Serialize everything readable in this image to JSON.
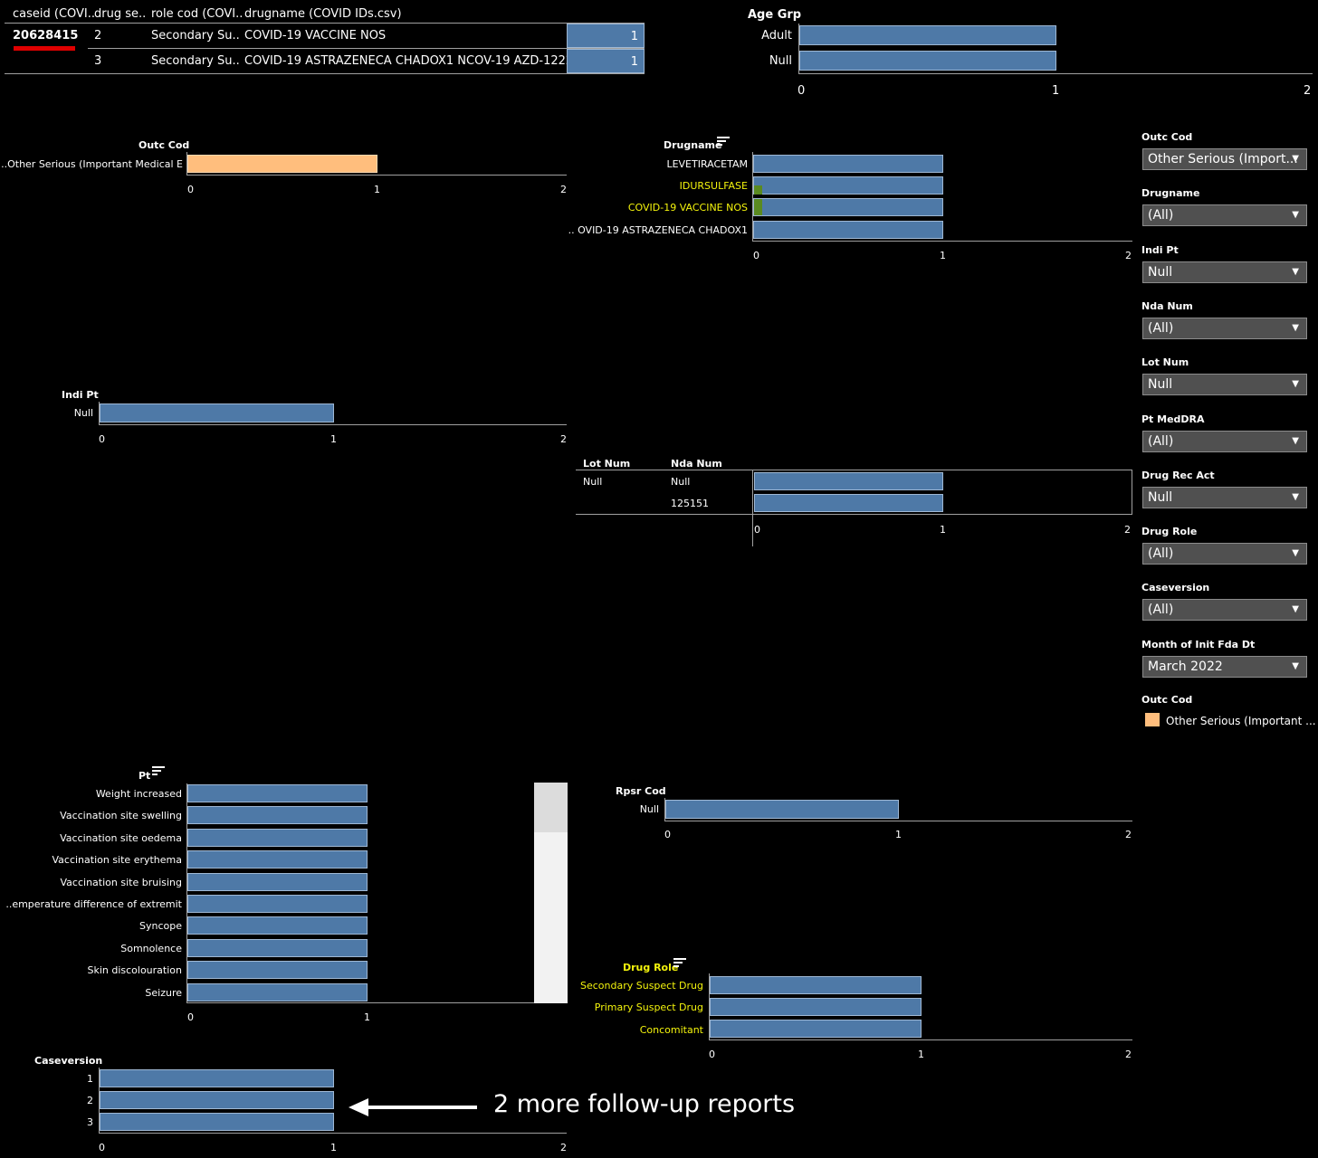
{
  "table": {
    "headers": [
      "caseid (COVI..",
      "drug se..",
      "role cod (COVI..",
      "drugname (COVID IDs.csv)"
    ],
    "caseid": "20628415",
    "rows": [
      {
        "seq": "2",
        "role": "Secondary Su..",
        "drugname": "COVID-19 VACCINE NOS",
        "value": "1"
      },
      {
        "seq": "3",
        "role": "Secondary Su..",
        "drugname": "COVID-19 ASTRAZENECA CHADOX1 NCOV-19 AZD-1222",
        "value": "1"
      }
    ]
  },
  "age_grp": {
    "title": "Age Grp",
    "labels": [
      "Adult",
      "Null"
    ],
    "ticks": [
      "0",
      "1",
      "2"
    ]
  },
  "outc_cod": {
    "title": "Outc Cod",
    "labels": [
      "Other Serious (Important Medical E.."
    ],
    "ticks": [
      "0",
      "1",
      "2"
    ]
  },
  "drugname": {
    "title": "Drugname",
    "labels": [
      "LEVETIRACETAM",
      "IDURSULFASE",
      "COVID-19 VACCINE NOS",
      "OVID-19 ASTRAZENECA CHADOX1 .."
    ],
    "ticks": [
      "0",
      "1",
      "2"
    ]
  },
  "indi_pt": {
    "title": "Indi Pt",
    "labels": [
      "Null"
    ],
    "ticks": [
      "0",
      "1",
      "2"
    ]
  },
  "lot_nda": {
    "col1": "Lot Num",
    "col2": "Nda Num",
    "lot": "Null",
    "nda": [
      "Null",
      "125151"
    ],
    "ticks": [
      "0",
      "1",
      "2"
    ]
  },
  "pt": {
    "title": "Pt",
    "labels": [
      "Weight increased",
      "Vaccination site swelling",
      "Vaccination site oedema",
      "Vaccination site erythema",
      "Vaccination site bruising",
      "emperature difference of extremit..",
      "Syncope",
      "Somnolence",
      "Skin discolouration",
      "Seizure"
    ],
    "ticks": [
      "0",
      "1"
    ]
  },
  "rpsr_cod": {
    "title": "Rpsr Cod",
    "labels": [
      "Null"
    ],
    "ticks": [
      "0",
      "1",
      "2"
    ]
  },
  "drug_role": {
    "title": "Drug Role",
    "labels": [
      "Secondary Suspect Drug",
      "Primary Suspect Drug",
      "Concomitant"
    ],
    "ticks": [
      "0",
      "1",
      "2"
    ]
  },
  "caseversion": {
    "title": "Caseversion",
    "labels": [
      "1",
      "2",
      "3"
    ],
    "ticks": [
      "0",
      "1",
      "2"
    ]
  },
  "annotation": {
    "text": "2 more follow-up reports"
  },
  "filters": [
    {
      "label": "Outc Cod",
      "value": "Other Serious (Import..."
    },
    {
      "label": "Drugname",
      "value": "(All)"
    },
    {
      "label": "Indi Pt",
      "value": "Null"
    },
    {
      "label": "Nda Num",
      "value": "(All)"
    },
    {
      "label": "Lot Num",
      "value": "Null"
    },
    {
      "label": "Pt MedDRA",
      "value": "(All)"
    },
    {
      "label": "Drug Rec Act",
      "value": "Null"
    },
    {
      "label": "Drug Role",
      "value": "(All)"
    },
    {
      "label": "Caseversion",
      "value": "(All)"
    },
    {
      "label": "Month of Init Fda Dt",
      "value": "March 2022"
    }
  ],
  "legend": {
    "title": "Outc Cod",
    "item": "Other Serious (Important ...",
    "color": "#ffbe7d"
  },
  "colors": {
    "bar": "#4e79a7",
    "highlight": "#f4f40c",
    "annotation_underline": "#e00000"
  },
  "chart_data": [
    {
      "type": "bar",
      "title": "Age Grp",
      "categories": [
        "Adult",
        "Null"
      ],
      "values": [
        1,
        1
      ],
      "xlim": [
        0,
        2
      ]
    },
    {
      "type": "bar",
      "title": "Outc Cod",
      "categories": [
        "Other Serious (Important Medical E.."
      ],
      "values": [
        1
      ],
      "xlim": [
        0,
        2
      ]
    },
    {
      "type": "bar",
      "title": "Drugname",
      "categories": [
        "LEVETIRACETAM",
        "IDURSULFASE",
        "COVID-19 VACCINE NOS",
        "OVID-19 ASTRAZENECA CHADOX1 .."
      ],
      "values": [
        1,
        1,
        1,
        1
      ],
      "xlim": [
        0,
        2
      ]
    },
    {
      "type": "bar",
      "title": "Indi Pt",
      "categories": [
        "Null"
      ],
      "values": [
        1
      ],
      "xlim": [
        0,
        2
      ]
    },
    {
      "type": "bar",
      "title": "Nda Num",
      "categories": [
        "Null",
        "125151"
      ],
      "values": [
        1,
        1
      ],
      "xlim": [
        0,
        2
      ]
    },
    {
      "type": "bar",
      "title": "Pt",
      "categories": [
        "Weight increased",
        "Vaccination site swelling",
        "Vaccination site oedema",
        "Vaccination site erythema",
        "Vaccination site bruising",
        "emperature difference of extremit..",
        "Syncope",
        "Somnolence",
        "Skin discolouration",
        "Seizure"
      ],
      "values": [
        1,
        1,
        1,
        1,
        1,
        1,
        1,
        1,
        1,
        1
      ]
    },
    {
      "type": "bar",
      "title": "Rpsr Cod",
      "categories": [
        "Null"
      ],
      "values": [
        1
      ],
      "xlim": [
        0,
        2
      ]
    },
    {
      "type": "bar",
      "title": "Drug Role",
      "categories": [
        "Secondary Suspect Drug",
        "Primary Suspect Drug",
        "Concomitant"
      ],
      "values": [
        1,
        1,
        1
      ],
      "xlim": [
        0,
        2
      ]
    },
    {
      "type": "bar",
      "title": "Caseversion",
      "categories": [
        "1",
        "2",
        "3"
      ],
      "values": [
        1,
        1,
        1
      ],
      "xlim": [
        0,
        2
      ]
    }
  ]
}
